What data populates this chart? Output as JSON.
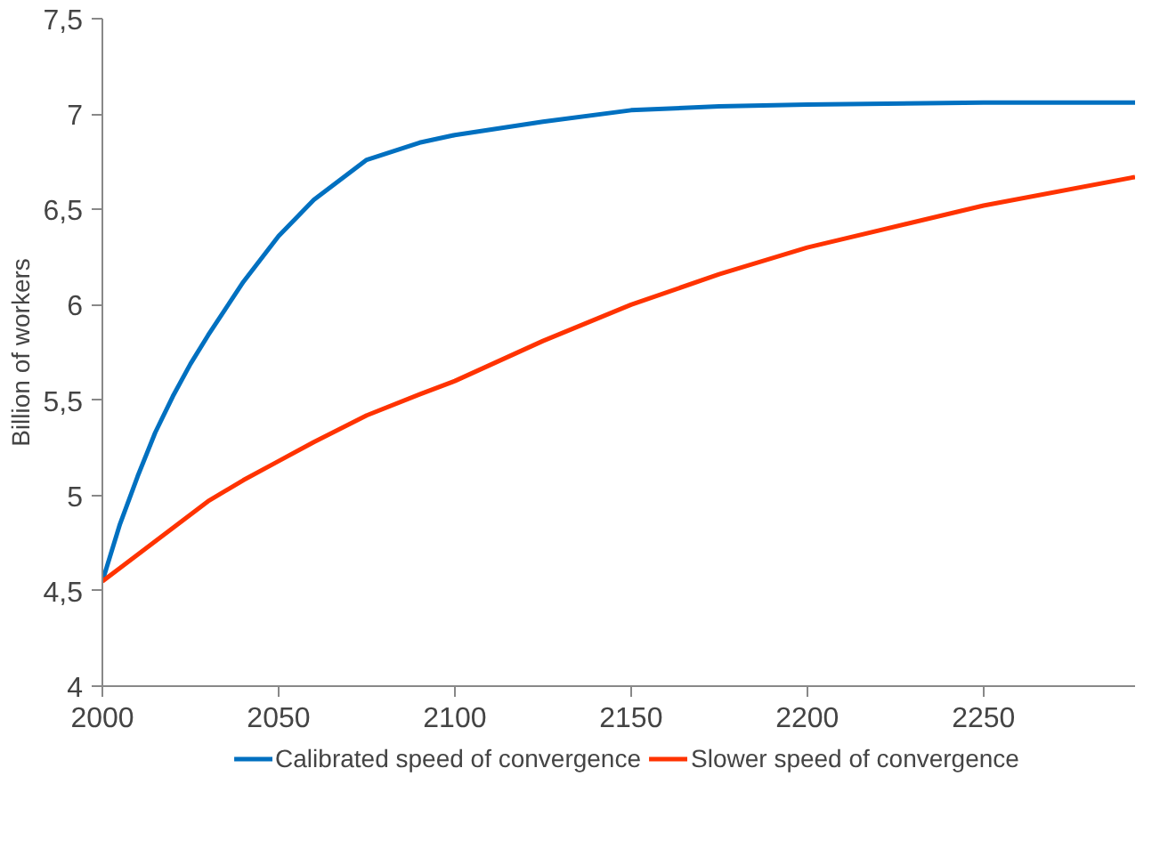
{
  "chart_data": {
    "type": "line",
    "ylabel": "Billion of workers",
    "xlim": [
      2000,
      2293
    ],
    "ylim": [
      4,
      7.5
    ],
    "xticks": [
      2000,
      2050,
      2100,
      2150,
      2200,
      2250
    ],
    "yticks": [
      {
        "value": 4,
        "label": "4"
      },
      {
        "value": 4.5,
        "label": "4,5"
      },
      {
        "value": 5,
        "label": "5"
      },
      {
        "value": 5.5,
        "label": "5,5"
      },
      {
        "value": 6,
        "label": "6"
      },
      {
        "value": 6.5,
        "label": "6,5"
      },
      {
        "value": 7,
        "label": "7"
      },
      {
        "value": 7.5,
        "label": "7,5"
      }
    ],
    "grid": false,
    "legend": "bottom",
    "marker": "none",
    "line_style": "solid",
    "x": [
      2000,
      2005,
      2010,
      2015,
      2020,
      2025,
      2030,
      2040,
      2050,
      2060,
      2075,
      2090,
      2100,
      2125,
      2150,
      2175,
      2200,
      2250,
      2293
    ],
    "series": [
      {
        "name": "Calibrated speed of convergence",
        "color": "#0070c0",
        "values": [
          4.55,
          4.85,
          5.1,
          5.33,
          5.52,
          5.69,
          5.84,
          6.12,
          6.36,
          6.55,
          6.76,
          6.85,
          6.89,
          6.96,
          7.02,
          7.04,
          7.05,
          7.06,
          7.06
        ]
      },
      {
        "name": "Slower speed of convergence",
        "color": "#ff3300",
        "values": [
          4.55,
          4.62,
          4.69,
          4.76,
          4.83,
          4.9,
          4.97,
          5.08,
          5.18,
          5.28,
          5.42,
          5.53,
          5.6,
          5.81,
          6.0,
          6.16,
          6.3,
          6.52,
          6.67
        ]
      }
    ]
  }
}
